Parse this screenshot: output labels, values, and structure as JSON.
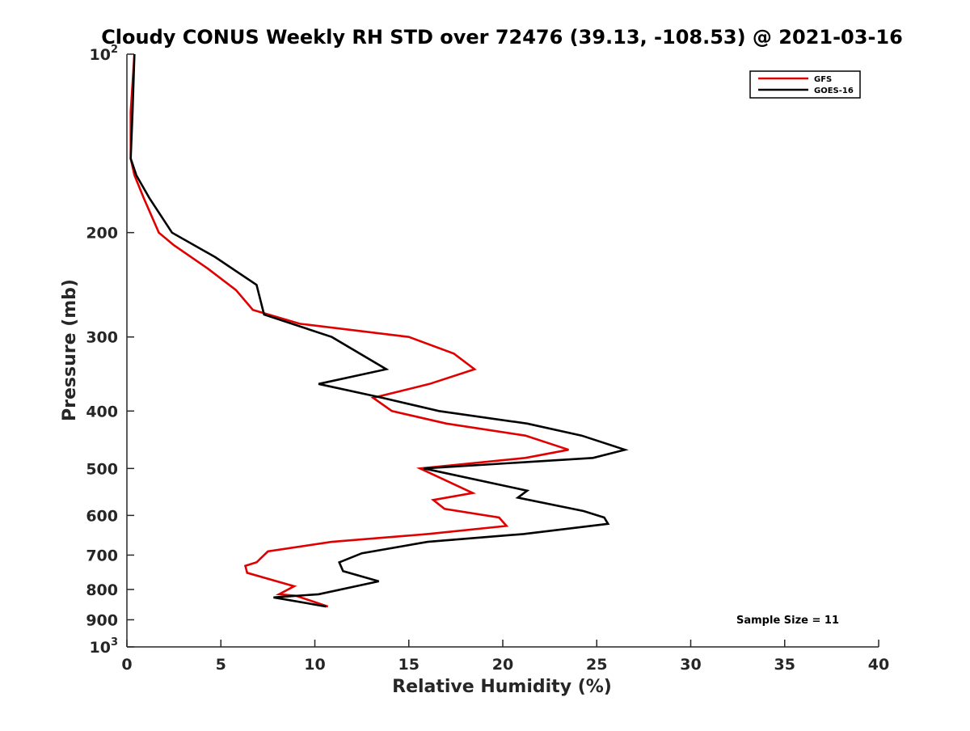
{
  "chart_data": {
    "type": "line",
    "title": "Cloudy CONUS Weekly RH STD over 72476 (39.13, -108.53) @ 2021-03-16",
    "xlabel": "Relative Humidity (%)",
    "ylabel": "Pressure (mb)",
    "xlim": [
      0,
      40
    ],
    "ylim": [
      1000,
      100
    ],
    "y_scale": "log",
    "y_reversed": true,
    "x_ticks": [
      0,
      5,
      10,
      15,
      20,
      25,
      30,
      35,
      40
    ],
    "y_ticks": [
      {
        "value": 100,
        "base": "10",
        "exp": "2"
      },
      {
        "value": 200,
        "label": "200"
      },
      {
        "value": 300,
        "label": "300"
      },
      {
        "value": 400,
        "label": "400"
      },
      {
        "value": 500,
        "label": "500"
      },
      {
        "value": 600,
        "label": "600"
      },
      {
        "value": 700,
        "label": "700"
      },
      {
        "value": 800,
        "label": "800"
      },
      {
        "value": 900,
        "label": "900"
      },
      {
        "value": 1000,
        "base": "10",
        "exp": "3"
      }
    ],
    "grid": false,
    "legend_position": "top-right",
    "annotation": "Sample Size = 11",
    "series": [
      {
        "name": "GFS",
        "color": "#e00000",
        "points": [
          [
            0.4,
            100
          ],
          [
            0.2,
            125
          ],
          [
            0.2,
            150
          ],
          [
            0.4,
            160
          ],
          [
            0.9,
            175
          ],
          [
            1.7,
            200
          ],
          [
            2.5,
            210
          ],
          [
            4.3,
            230
          ],
          [
            5.8,
            250
          ],
          [
            6.7,
            270
          ],
          [
            9.2,
            285
          ],
          [
            15.0,
            300
          ],
          [
            17.4,
            320
          ],
          [
            18.5,
            340
          ],
          [
            16.1,
            360
          ],
          [
            13.1,
            380
          ],
          [
            14.1,
            400
          ],
          [
            17.0,
            420
          ],
          [
            21.2,
            440
          ],
          [
            23.5,
            465
          ],
          [
            21.2,
            480
          ],
          [
            15.6,
            500
          ],
          [
            18.4,
            550
          ],
          [
            16.3,
            565
          ],
          [
            16.9,
            585
          ],
          [
            19.8,
            605
          ],
          [
            20.2,
            625
          ],
          [
            16.0,
            645
          ],
          [
            10.9,
            665
          ],
          [
            7.5,
            690
          ],
          [
            6.9,
            720
          ],
          [
            6.3,
            730
          ],
          [
            6.4,
            750
          ],
          [
            8.9,
            790
          ],
          [
            8.1,
            815
          ],
          [
            9.0,
            820
          ],
          [
            10.7,
            855
          ]
        ]
      },
      {
        "name": "GOES-16",
        "color": "#000000",
        "points": [
          [
            0.4,
            100
          ],
          [
            0.3,
            125
          ],
          [
            0.2,
            150
          ],
          [
            0.5,
            160
          ],
          [
            1.2,
            175
          ],
          [
            2.4,
            200
          ],
          [
            4.7,
            220
          ],
          [
            6.9,
            245
          ],
          [
            7.3,
            275
          ],
          [
            10.9,
            300
          ],
          [
            13.8,
            340
          ],
          [
            10.2,
            360
          ],
          [
            13.6,
            380
          ],
          [
            16.6,
            400
          ],
          [
            21.3,
            420
          ],
          [
            24.2,
            440
          ],
          [
            26.5,
            465
          ],
          [
            24.8,
            480
          ],
          [
            15.8,
            500
          ],
          [
            21.3,
            545
          ],
          [
            20.8,
            560
          ],
          [
            24.3,
            590
          ],
          [
            25.4,
            605
          ],
          [
            25.6,
            620
          ],
          [
            21.1,
            645
          ],
          [
            16.0,
            665
          ],
          [
            12.5,
            695
          ],
          [
            11.3,
            720
          ],
          [
            11.5,
            745
          ],
          [
            13.4,
            775
          ],
          [
            10.2,
            815
          ],
          [
            7.8,
            825
          ],
          [
            10.6,
            855
          ]
        ]
      }
    ]
  }
}
